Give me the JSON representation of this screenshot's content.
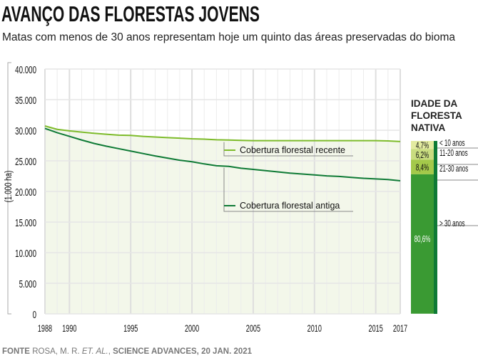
{
  "title": "AVANÇO DAS FLORESTAS JOVENS",
  "subtitle": "Matas com menos de 30 anos representam hoje um quinto das áreas preservadas do bioma",
  "source": {
    "label": "FONTE",
    "text": "ROSA, M. R.",
    "italic": "ET. AL.",
    "rest": "SCIENCE ADVANCES, 20 JAN. 2021"
  },
  "colors": {
    "recent": "#7dbb2a",
    "old": "#0e7a35",
    "fill": "#f3f7ea",
    "bar_old": "#3a9a33",
    "bar_edge": "#0e7a35"
  },
  "chart_data": {
    "type": "line",
    "ylabel": "(1.000 ha)",
    "ylim": [
      0,
      40000
    ],
    "yticks": [
      0,
      5000,
      10000,
      15000,
      20000,
      25000,
      30000,
      35000,
      40000
    ],
    "ytick_labels": [
      "0",
      "5.000",
      "10.000",
      "15.000",
      "20.000",
      "25.000",
      "30.000",
      "35.000",
      "40.000"
    ],
    "xlim": [
      1988,
      2017
    ],
    "xticks": [
      1988,
      1990,
      1995,
      2000,
      2005,
      2010,
      2015,
      2017
    ],
    "x": [
      1988,
      1989,
      1990,
      1991,
      1992,
      1993,
      1994,
      1995,
      1996,
      1997,
      1998,
      1999,
      2000,
      2001,
      2002,
      2003,
      2004,
      2005,
      2006,
      2007,
      2008,
      2009,
      2010,
      2011,
      2012,
      2013,
      2014,
      2015,
      2016,
      2017
    ],
    "series": [
      {
        "name": "Cobertura florestal recente",
        "values": [
          30700,
          30150,
          29900,
          29700,
          29500,
          29350,
          29200,
          29150,
          29000,
          28900,
          28800,
          28700,
          28600,
          28550,
          28450,
          28400,
          28350,
          28300,
          28300,
          28300,
          28300,
          28300,
          28300,
          28300,
          28300,
          28300,
          28300,
          28300,
          28250,
          28150
        ]
      },
      {
        "name": "Cobertura florestal antiga",
        "values": [
          30300,
          29600,
          29000,
          28400,
          27850,
          27400,
          27000,
          26600,
          26200,
          25800,
          25450,
          25100,
          24850,
          24500,
          24200,
          24100,
          23800,
          23600,
          23400,
          23200,
          23000,
          22850,
          22700,
          22550,
          22450,
          22300,
          22150,
          22050,
          21950,
          21750
        ]
      }
    ],
    "grid": true
  },
  "age_legend": {
    "title": "IDADE DA FLORESTA NATIVA",
    "segments": [
      {
        "label": "< 10 anos",
        "pct": 4.7,
        "text": "4,7%",
        "color": "#e3eba0"
      },
      {
        "label": "11-20 anos",
        "pct": 6.2,
        "text": "6,2%",
        "color": "#c9dc80"
      },
      {
        "label": "21-30 anos",
        "pct": 8.4,
        "text": "8,4%",
        "color": "#a4c94a"
      },
      {
        "label": "> 30 anos",
        "pct": 80.6,
        "text": "80,6%",
        "color": "#3a9a33"
      }
    ]
  }
}
